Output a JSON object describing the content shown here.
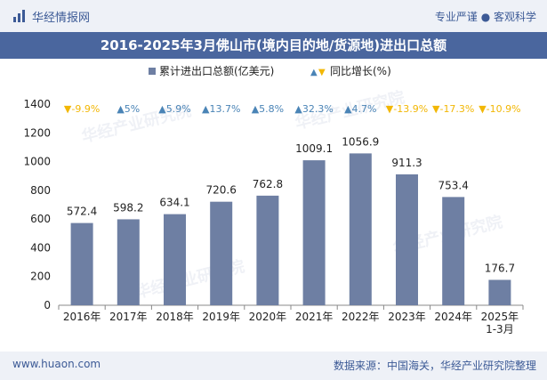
{
  "header": {
    "brand": "华经情报网",
    "tagline": "专业严谨 ● 客观科学",
    "title": "2016-2025年3月佛山市(境内目的地/货源地)进出口总额"
  },
  "footer": {
    "site": "www.huaon.com",
    "source": "数据来源：中国海关，华经产业研究院整理"
  },
  "watermark_text": "华经产业研究院",
  "colors": {
    "bar": "#6e7fa3",
    "up": "#4a84b6",
    "down": "#f2b705",
    "header_bg": "#4a669e",
    "bar_text": "#222222"
  },
  "chart_data": {
    "type": "bar",
    "categories": [
      "2016年",
      "2017年",
      "2018年",
      "2019年",
      "2020年",
      "2021年",
      "2022年",
      "2023年",
      "2024年",
      "2025年\n1-3月"
    ],
    "series": [
      {
        "name": "累计进出口总额(亿美元)",
        "values": [
          572.4,
          598.2,
          634.1,
          720.6,
          762.8,
          1009.1,
          1056.9,
          911.3,
          753.4,
          176.7
        ]
      },
      {
        "name": "同比增长(%)",
        "values": [
          -9.9,
          5,
          5.9,
          13.7,
          5.8,
          32.3,
          4.7,
          -13.9,
          -17.3,
          -10.9
        ],
        "labels": [
          "-9.9%",
          "5%",
          "5.9%",
          "13.7%",
          "5.8%",
          "32.3%",
          "4.7%",
          "-13.9%",
          "-17.3%",
          "-10.9%"
        ]
      }
    ],
    "ylim": [
      0,
      1400
    ],
    "yticks": [
      0,
      200,
      400,
      600,
      800,
      1000,
      1200,
      1400
    ],
    "ytick_labels": [
      "0",
      "200",
      "400",
      "600",
      "800",
      "1000",
      "1200",
      "1400"
    ],
    "value_labels": [
      "572.4",
      "598.2",
      "634.1",
      "720.6",
      "762.8",
      "1009.1",
      "1056.9",
      "911.3",
      "753.4",
      "176.7"
    ],
    "legend": [
      {
        "marker": "■",
        "label": "累计进出口总额(亿美元)"
      },
      {
        "marker": "▲▼",
        "label": "同比增长(%)"
      }
    ],
    "legend_position": "top-center",
    "grid": false
  }
}
